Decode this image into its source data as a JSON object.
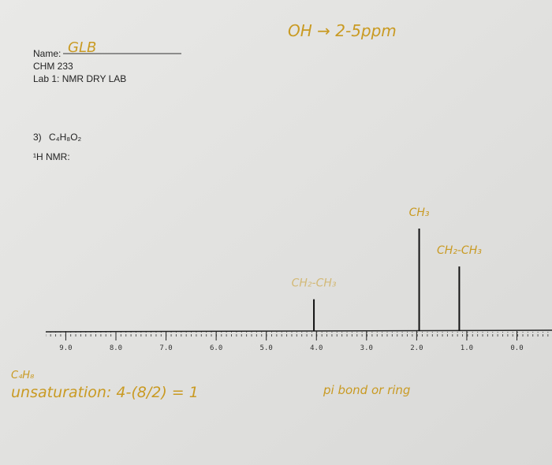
{
  "header": {
    "name_label": "Name:",
    "name": "GLB",
    "course": "CHM 233",
    "lab": "Lab 1: NMR DRY LAB"
  },
  "question": {
    "number": "3)",
    "formula": "C₄H₈O₂",
    "nmr_label": "¹H NMR:"
  },
  "notes": {
    "oh_shift": "OH → 2-5ppm",
    "formula": "C₄H₈",
    "unsaturation": "unsaturation: 4-(8/2) = 1",
    "conclusion": "pi bond or ring"
  },
  "spectrum": {
    "xlim": [
      9.4,
      -0.7
    ],
    "xticks": [
      {
        "value": 9,
        "label": "9.0"
      },
      {
        "value": 8,
        "label": "8.0"
      },
      {
        "value": 7,
        "label": "7.0"
      },
      {
        "value": 6,
        "label": "6.0"
      },
      {
        "value": 5,
        "label": "5.0"
      },
      {
        "value": 4,
        "label": "4.0"
      },
      {
        "value": 3,
        "label": "3.0"
      },
      {
        "value": 2,
        "label": "2.0"
      },
      {
        "value": 1,
        "label": "1.0"
      },
      {
        "value": 0,
        "label": "0.0"
      }
    ],
    "peaks": [
      {
        "shift": 4.05,
        "relative_height": 0.31,
        "label": "CH₂-CH₃"
      },
      {
        "shift": 1.95,
        "relative_height": 1.0,
        "label": "CH₃"
      },
      {
        "shift": 1.15,
        "relative_height": 0.63,
        "label": "CH₂-CH₃"
      }
    ]
  }
}
